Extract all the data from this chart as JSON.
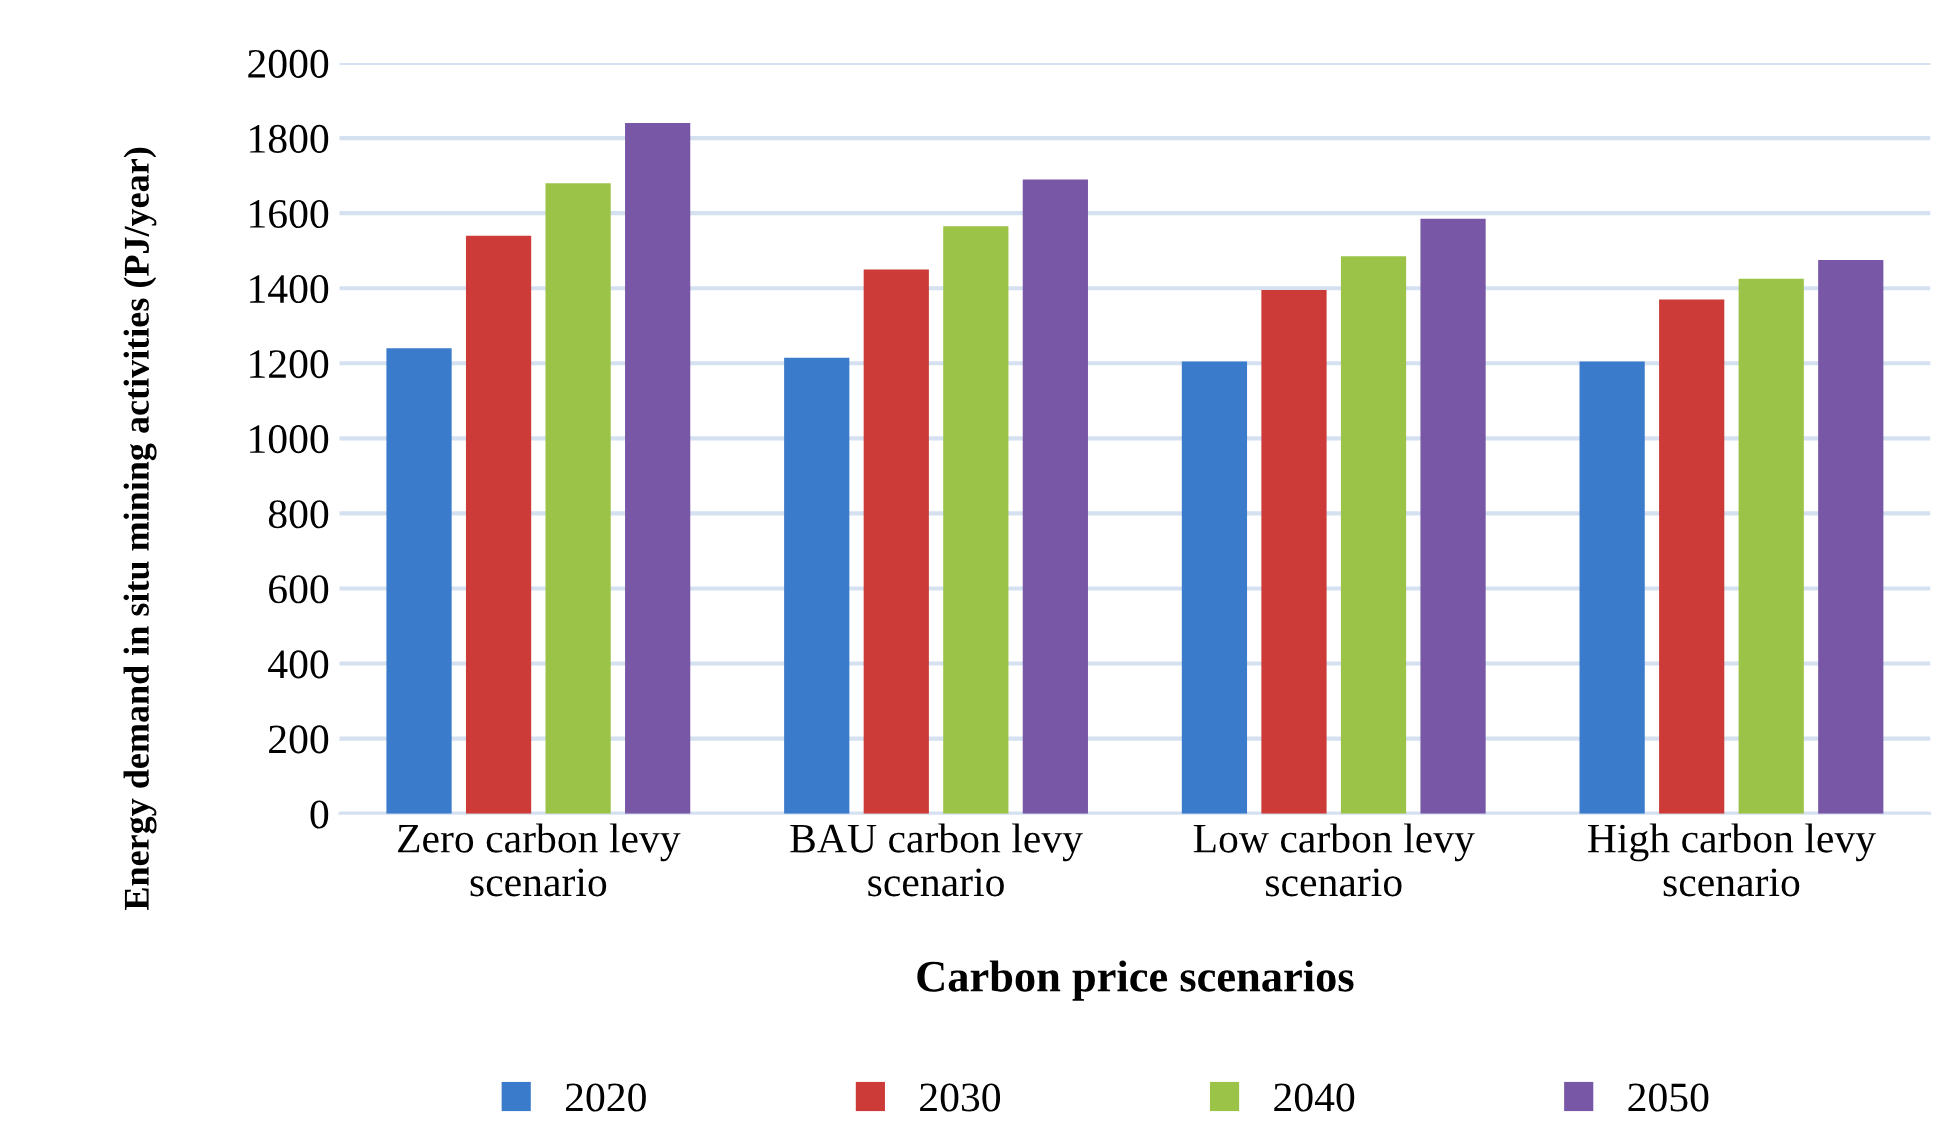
{
  "chart_data": {
    "type": "bar",
    "xlabel": "Carbon price scenarios",
    "ylabel": "Energy demand in situ mining activities (PJ/year)",
    "categories": [
      "Zero carbon levy\nscenario",
      "BAU carbon levy\nscenario",
      "Low carbon levy\nscenario",
      "High carbon levy\nscenario"
    ],
    "series": [
      {
        "name": "2020",
        "color": "#3a7bcb",
        "values": [
          1240,
          1215,
          1205,
          1205
        ]
      },
      {
        "name": "2030",
        "color": "#cc3b37",
        "values": [
          1540,
          1450,
          1395,
          1370
        ]
      },
      {
        "name": "2040",
        "color": "#9bc347",
        "values": [
          1680,
          1565,
          1485,
          1425
        ]
      },
      {
        "name": "2050",
        "color": "#7857a6",
        "values": [
          1840,
          1690,
          1585,
          1475
        ]
      }
    ],
    "ylim": [
      0,
      2000
    ],
    "yticks": [
      0,
      200,
      400,
      600,
      800,
      1000,
      1200,
      1400,
      1600,
      1800,
      2000
    ],
    "grid": "y",
    "legend": "bottom"
  }
}
